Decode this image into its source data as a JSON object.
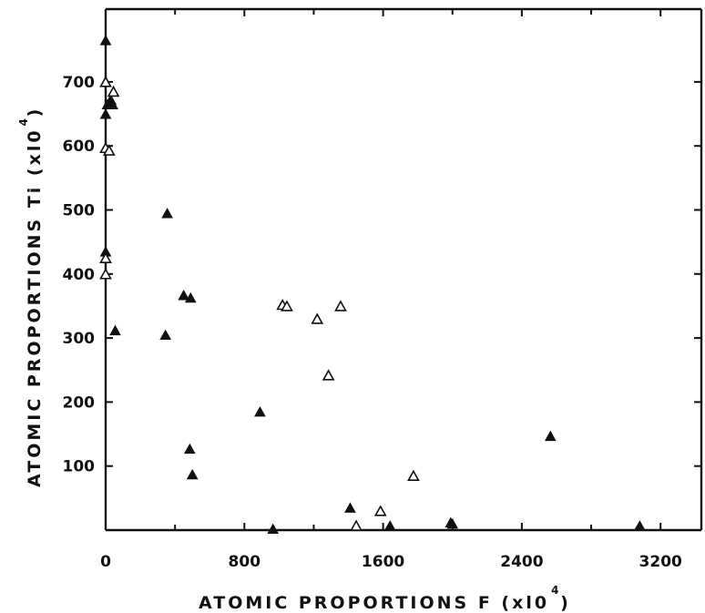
{
  "chart_data": {
    "type": "scatter",
    "title": "",
    "xlabel": {
      "text": "ATOMIC  PROPORTIONS  F  (xl0",
      "sup": "4",
      "close": ")"
    },
    "ylabel": {
      "text": "ATOMIC  PROPORTIONS  Ti  (xl0",
      "sup": "4",
      "close": ")"
    },
    "xlim": [
      0,
      3500
    ],
    "ylim": [
      0,
      800
    ],
    "xticks": [
      0,
      800,
      1600,
      2400,
      3200
    ],
    "xtick_labels": [
      "0",
      "800",
      "1600",
      "2400",
      "3200"
    ],
    "yticks": [
      100,
      200,
      300,
      400,
      500,
      600,
      700
    ],
    "ytick_labels": [
      "100",
      "200",
      "300",
      "400",
      "500",
      "600",
      "700"
    ],
    "grid": false,
    "series": [
      {
        "marker": "filled-triangle",
        "color": "#111111",
        "points": [
          {
            "x": 0,
            "y": 765
          },
          {
            "x": 0,
            "y": 650
          },
          {
            "x": 10,
            "y": 665
          },
          {
            "x": 20,
            "y": 668
          },
          {
            "x": 30,
            "y": 672
          },
          {
            "x": 40,
            "y": 665
          },
          {
            "x": 0,
            "y": 435
          },
          {
            "x": 55,
            "y": 312
          },
          {
            "x": 355,
            "y": 495
          },
          {
            "x": 345,
            "y": 305
          },
          {
            "x": 450,
            "y": 367
          },
          {
            "x": 490,
            "y": 363
          },
          {
            "x": 485,
            "y": 127
          },
          {
            "x": 500,
            "y": 87
          },
          {
            "x": 890,
            "y": 185
          },
          {
            "x": 965,
            "y": 2
          },
          {
            "x": 1410,
            "y": 35
          },
          {
            "x": 1640,
            "y": 7
          },
          {
            "x": 1990,
            "y": 12
          },
          {
            "x": 2000,
            "y": 10
          },
          {
            "x": 2565,
            "y": 147
          },
          {
            "x": 3080,
            "y": 7
          }
        ]
      },
      {
        "marker": "open-triangle",
        "color": "#111111",
        "points": [
          {
            "x": 0,
            "y": 700
          },
          {
            "x": 45,
            "y": 685
          },
          {
            "x": 0,
            "y": 597
          },
          {
            "x": 20,
            "y": 593
          },
          {
            "x": 0,
            "y": 425
          },
          {
            "x": 0,
            "y": 400
          },
          {
            "x": 1020,
            "y": 352
          },
          {
            "x": 1045,
            "y": 350
          },
          {
            "x": 1220,
            "y": 330
          },
          {
            "x": 1355,
            "y": 350
          },
          {
            "x": 1285,
            "y": 242
          },
          {
            "x": 1445,
            "y": 7
          },
          {
            "x": 1585,
            "y": 30
          },
          {
            "x": 1775,
            "y": 85
          }
        ]
      }
    ],
    "dashed_segments": [
      {
        "from": [
          0,
          765
        ],
        "to": [
          0,
          440
        ]
      },
      {
        "from": [
          0,
          400
        ],
        "to": [
          0,
          300
        ]
      },
      {
        "from": [
          980,
          0
        ],
        "to": [
          3100,
          0
        ]
      }
    ]
  }
}
